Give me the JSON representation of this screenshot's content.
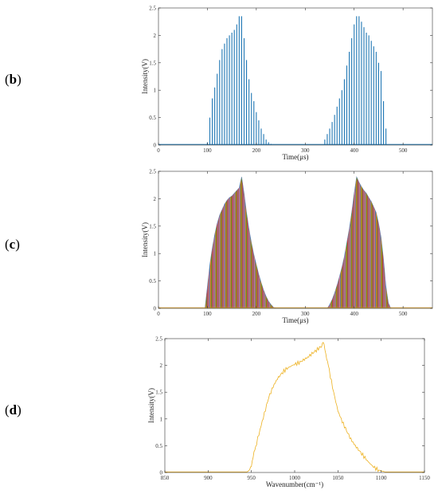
{
  "panels": [
    {
      "letter": "b"
    },
    {
      "letter": "c"
    },
    {
      "letter": "d"
    }
  ],
  "chart_data": [
    {
      "type": "bar",
      "panel": "b",
      "xlabel": "Time(μs)",
      "ylabel": "Intensity(V)",
      "xlim": [
        0,
        560
      ],
      "ylim": [
        0,
        2.5
      ],
      "xticks": [
        0,
        100,
        200,
        300,
        400,
        500
      ],
      "yticks": [
        0,
        0.5,
        1,
        1.5,
        2,
        2.5
      ],
      "grid": false,
      "series": [
        {
          "color": "#1f77b4",
          "x": [
            100,
            105,
            110,
            115,
            120,
            125,
            130,
            135,
            140,
            145,
            150,
            155,
            160,
            165,
            170,
            175,
            180,
            185,
            190,
            195,
            200,
            205,
            210,
            215,
            220,
            225,
            230,
            340,
            345,
            350,
            355,
            360,
            365,
            370,
            375,
            380,
            385,
            390,
            395,
            400,
            405,
            410,
            415,
            420,
            425,
            430,
            435,
            440,
            445,
            450,
            455,
            460,
            465
          ],
          "values": [
            0.05,
            0.5,
            0.85,
            1.05,
            1.3,
            1.55,
            1.75,
            1.85,
            1.95,
            2.0,
            2.05,
            2.1,
            2.2,
            2.35,
            2.35,
            1.95,
            1.55,
            1.2,
            0.95,
            0.8,
            0.6,
            0.45,
            0.3,
            0.2,
            0.1,
            0.05,
            0.02,
            0.1,
            0.2,
            0.3,
            0.42,
            0.55,
            0.7,
            0.85,
            1.0,
            1.2,
            1.45,
            1.7,
            1.95,
            2.2,
            2.35,
            2.35,
            2.25,
            2.15,
            2.05,
            2.0,
            1.9,
            1.8,
            1.7,
            1.5,
            1.35,
            0.8,
            0.3
          ]
        }
      ]
    },
    {
      "type": "area",
      "panel": "c",
      "xlabel": "Time(μs)",
      "ylabel": "Intensity(V)",
      "xlim": [
        0,
        560
      ],
      "ylim": [
        0,
        2.5
      ],
      "xticks": [
        0,
        100,
        200,
        300,
        400,
        500
      ],
      "yticks": [
        0,
        0.5,
        1,
        1.5,
        2,
        2.5
      ],
      "grid": false,
      "series": [
        {
          "colors": [
            "#1f77b4",
            "#ff7f0e",
            "#2ca02c",
            "#d62728",
            "#9467bd",
            "#8c564b",
            "#e377c2"
          ],
          "x": [
            95,
            100,
            105,
            110,
            115,
            120,
            125,
            130,
            135,
            140,
            145,
            150,
            155,
            160,
            165,
            170,
            175,
            180,
            185,
            190,
            195,
            200,
            205,
            210,
            215,
            220,
            225,
            230,
            235,
            240,
            345,
            350,
            355,
            360,
            365,
            370,
            375,
            380,
            385,
            390,
            395,
            400,
            405,
            410,
            415,
            420,
            425,
            430,
            435,
            440,
            445,
            450,
            455,
            460,
            465,
            470,
            475
          ],
          "y": [
            0,
            0.4,
            0.8,
            1.1,
            1.35,
            1.55,
            1.7,
            1.8,
            1.9,
            1.97,
            2.02,
            2.05,
            2.1,
            2.15,
            2.2,
            2.4,
            2.1,
            1.75,
            1.45,
            1.2,
            0.98,
            0.8,
            0.62,
            0.47,
            0.33,
            0.22,
            0.13,
            0.07,
            0.02,
            0,
            0,
            0.07,
            0.16,
            0.28,
            0.42,
            0.58,
            0.75,
            0.95,
            1.2,
            1.45,
            1.75,
            2.1,
            2.4,
            2.3,
            2.22,
            2.15,
            2.1,
            2.02,
            1.95,
            1.85,
            1.75,
            1.55,
            1.3,
            0.9,
            0.4,
            0.1,
            0
          ]
        }
      ]
    },
    {
      "type": "line",
      "panel": "d",
      "xlabel": "Wavenumber(cm⁻¹)",
      "ylabel": "Intensity(V)",
      "xlim": [
        850,
        1150
      ],
      "ylim": [
        0,
        2.5
      ],
      "xticks": [
        850,
        900,
        950,
        1000,
        1050,
        1100,
        1150
      ],
      "yticks": [
        0,
        0.5,
        1,
        1.5,
        2,
        2.5
      ],
      "grid": false,
      "series": [
        {
          "color": "#edb120",
          "x": [
            850,
            900,
            945,
            948,
            950,
            953,
            956,
            960,
            965,
            970,
            975,
            980,
            985,
            990,
            995,
            1000,
            1005,
            1010,
            1015,
            1020,
            1025,
            1030,
            1033,
            1035,
            1037,
            1040,
            1045,
            1050,
            1055,
            1060,
            1065,
            1070,
            1075,
            1080,
            1085,
            1090,
            1095,
            1100,
            1105,
            1110,
            1150
          ],
          "y": [
            0.01,
            0.01,
            0.01,
            0.05,
            0.15,
            0.35,
            0.55,
            0.8,
            1.1,
            1.4,
            1.6,
            1.75,
            1.85,
            1.93,
            1.98,
            2.02,
            2.05,
            2.1,
            2.15,
            2.22,
            2.28,
            2.35,
            2.42,
            2.3,
            2.15,
            1.9,
            1.5,
            1.15,
            0.95,
            0.78,
            0.62,
            0.5,
            0.4,
            0.3,
            0.2,
            0.12,
            0.06,
            0.03,
            0.01,
            0.01,
            0.01
          ]
        }
      ]
    }
  ]
}
